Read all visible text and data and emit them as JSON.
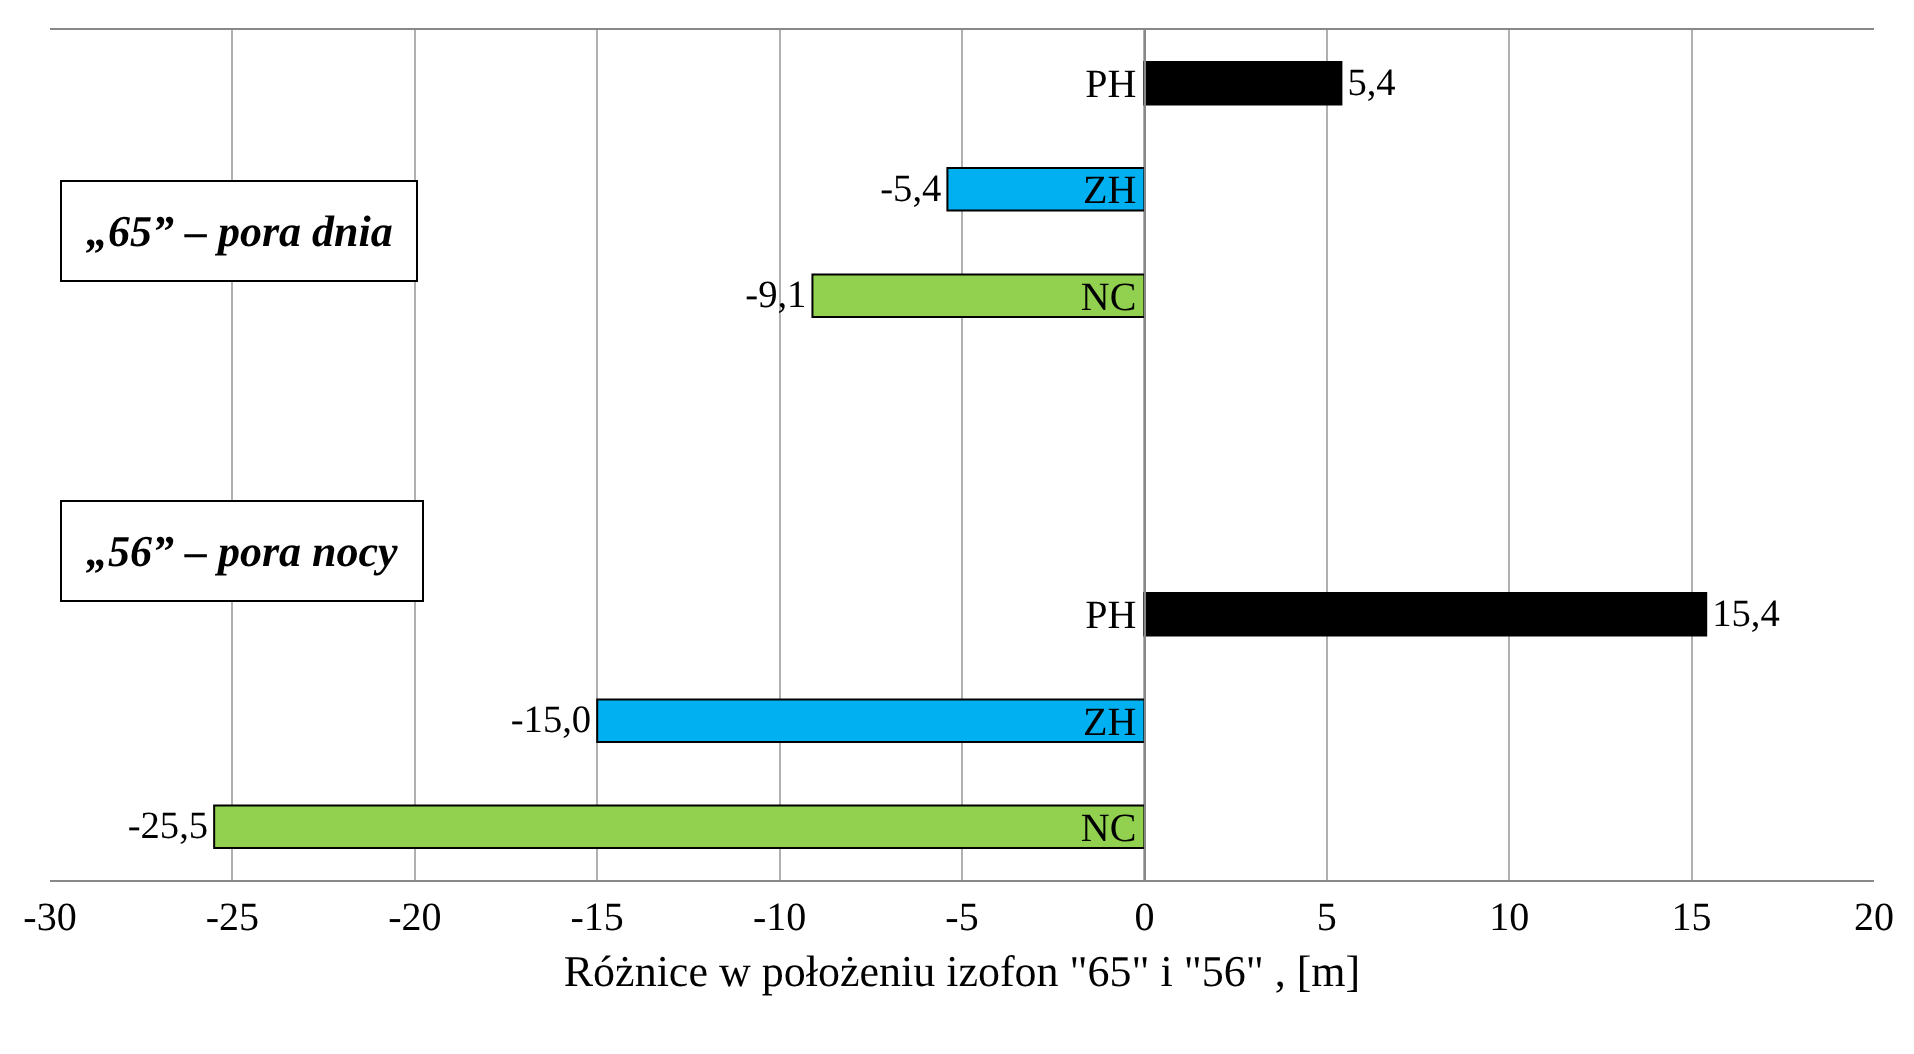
{
  "chart_data": {
    "type": "bar",
    "orientation": "horizontal",
    "xlabel": "Różnice w położeniu izofon \"65\" i \"56\" , [m]",
    "categories": [
      "PH",
      "ZH",
      "NC",
      null,
      null,
      "PH",
      "ZH",
      "NC"
    ],
    "values": [
      5.4,
      -5.4,
      -9.1,
      null,
      null,
      15.4,
      -15.0,
      -25.5
    ],
    "colors": [
      "#000000",
      "#00b0f0",
      "#92d050",
      null,
      null,
      "#000000",
      "#00b0f0",
      "#92d050"
    ],
    "value_labels": [
      "5,4",
      "-5,4",
      "-9,1",
      null,
      null,
      "15,4",
      "-15,0",
      "-25,5"
    ],
    "xlim": [
      -30,
      20
    ],
    "xticks": [
      -30,
      -25,
      -20,
      -15,
      -10,
      -5,
      0,
      5,
      10,
      15,
      20
    ],
    "grid": "x",
    "annotations": [
      "„65” – pora dnia",
      "„56” – pora nocy"
    ]
  }
}
